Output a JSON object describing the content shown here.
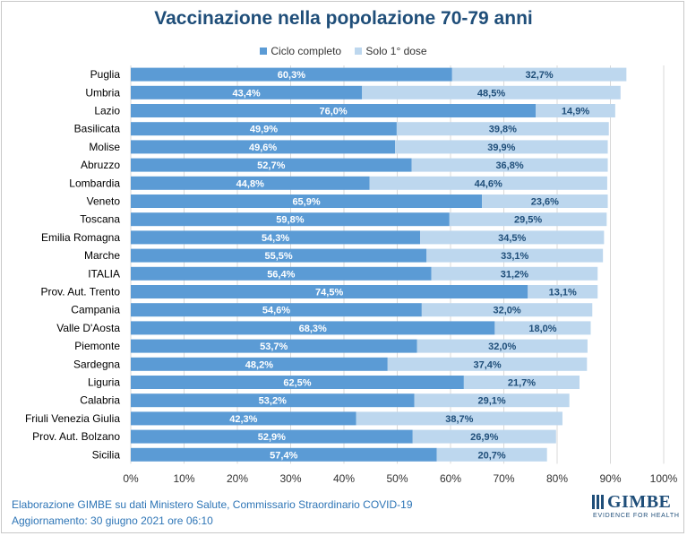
{
  "colors": {
    "series1": "#5b9bd5",
    "series2": "#bdd7ee",
    "label": "#1f4e79",
    "grid": "#d9d9d9"
  },
  "chart_data": {
    "type": "bar",
    "orientation": "horizontal",
    "stacked": true,
    "title": "Vaccinazione nella popolazione 70-79 anni",
    "categories": [
      "Puglia",
      "Umbria",
      "Lazio",
      "Basilicata",
      "Molise",
      "Abruzzo",
      "Lombardia",
      "Veneto",
      "Toscana",
      "Emilia Romagna",
      "Marche",
      "ITALIA",
      "Prov. Aut. Trento",
      "Campania",
      "Valle D'Aosta",
      "Piemonte",
      "Sardegna",
      "Liguria",
      "Calabria",
      "Friuli Venezia Giulia",
      "Prov. Aut. Bolzano",
      "Sicilia"
    ],
    "series": [
      {
        "name": "Ciclo completo",
        "values": [
          60.3,
          43.4,
          76.0,
          49.9,
          49.6,
          52.7,
          44.8,
          65.9,
          59.8,
          54.3,
          55.5,
          56.4,
          74.5,
          54.6,
          68.3,
          53.7,
          48.2,
          62.5,
          53.2,
          42.3,
          52.9,
          57.4
        ]
      },
      {
        "name": "Solo 1° dose",
        "values": [
          32.7,
          48.5,
          14.9,
          39.8,
          39.9,
          36.8,
          44.6,
          23.6,
          29.5,
          34.5,
          33.1,
          31.2,
          13.1,
          32.0,
          18.0,
          32.0,
          37.4,
          21.7,
          29.1,
          38.7,
          26.9,
          20.7
        ]
      }
    ],
    "xlim": [
      0,
      100
    ],
    "xticks": [
      "0%",
      "10%",
      "20%",
      "30%",
      "40%",
      "50%",
      "60%",
      "70%",
      "80%",
      "90%",
      "100%"
    ],
    "grid": true,
    "legend": "top-center"
  },
  "footer": {
    "line1": "Elaborazione GIMBE su dati Ministero  Salute, Commissario Straordinario  COVID-19",
    "line2": "Aggiornamento:  30 giugno  2021 ore 06:10"
  },
  "logo": {
    "name": "GIMBE",
    "tagline": "EVIDENCE FOR HEALTH"
  }
}
